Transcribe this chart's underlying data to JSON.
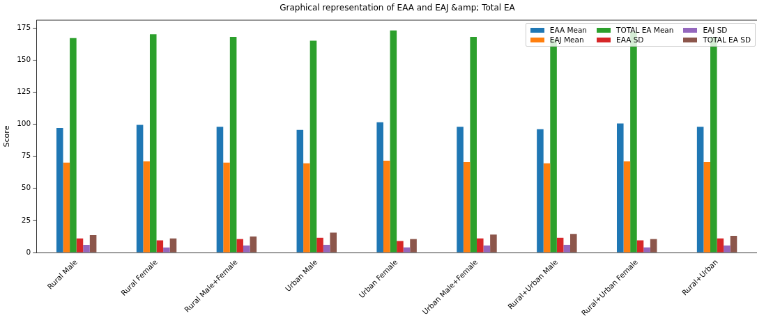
{
  "chart_data": {
    "type": "bar",
    "title": "Graphical representation of EAA and EAJ &amp; Total EA",
    "ylabel": "Score",
    "categories": [
      "Rural Male",
      "Rural Female",
      "Rural Male+Female",
      "Urban Male",
      "Urban Female",
      "Urban Male+Female",
      "Rural+Urban Male",
      "Rural+Urban Female",
      "Rural+Urban"
    ],
    "series": [
      {
        "name": "EAA Mean",
        "color": "#1f77b4",
        "values": [
          97,
          99.5,
          98,
          95.5,
          101.5,
          98,
          96,
          100.5,
          98
        ]
      },
      {
        "name": "EAJ Mean",
        "color": "#ff7f0e",
        "values": [
          70,
          71,
          70,
          69.5,
          71.5,
          70.5,
          69.5,
          71,
          70.5
        ]
      },
      {
        "name": "TOTAL EA Mean",
        "color": "#2ca02c",
        "values": [
          167,
          170,
          168,
          165,
          173,
          168,
          166,
          172,
          168
        ]
      },
      {
        "name": "EAA SD",
        "color": "#d62728",
        "values": [
          11,
          9.5,
          10.5,
          11.5,
          9,
          11,
          11.5,
          9.5,
          11
        ]
      },
      {
        "name": "EAJ SD",
        "color": "#9467bd",
        "values": [
          6,
          4,
          5.5,
          6,
          4,
          5.5,
          6,
          4,
          5.5
        ]
      },
      {
        "name": "TOTAL EA SD",
        "color": "#8c564b",
        "values": [
          13.5,
          11,
          12.5,
          15.5,
          10.5,
          14,
          14.5,
          10.5,
          13
        ]
      }
    ],
    "ylim": [
      0,
      181
    ],
    "yticks": [
      0,
      25,
      50,
      75,
      100,
      125,
      150,
      175
    ],
    "grid": false,
    "legend": "top right"
  }
}
